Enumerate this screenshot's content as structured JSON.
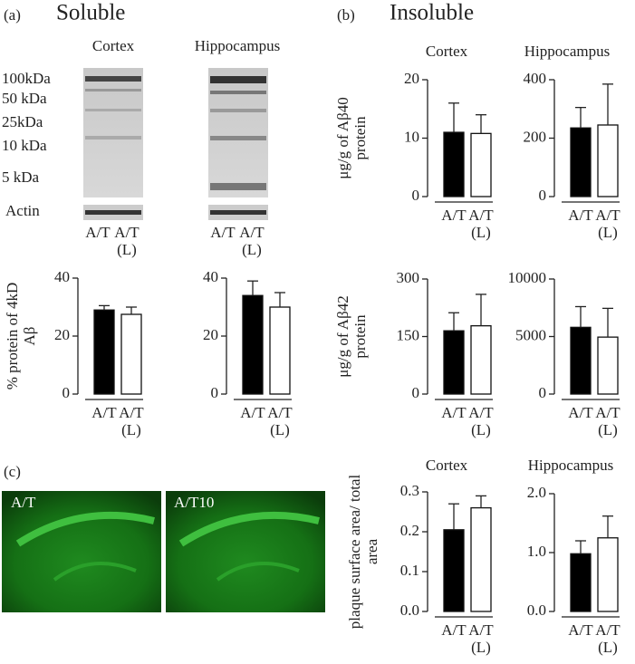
{
  "panels": [
    "(a)",
    "(b)",
    "(c)"
  ],
  "headings": [
    "Soluble",
    "Insoluble"
  ],
  "blot": {
    "columns": [
      "Cortex",
      "Hippocampus"
    ],
    "markers": [
      "100kDa",
      "50 kDa",
      "25kDa",
      "10 kDa",
      "5 kDa"
    ],
    "actin": "Actin",
    "lanes": [
      "A/T",
      "A/T (L)"
    ]
  },
  "images": [
    "A/T",
    "A/T10"
  ],
  "chart_data": [
    {
      "type": "bar",
      "y_label": "% protein of 4kD Aβ",
      "categories": [
        "A/T",
        "A/T (L)"
      ],
      "values": [
        29,
        27.5
      ],
      "errors": [
        1.5,
        2.5
      ],
      "colors": [
        "#000000",
        "#ffffff"
      ],
      "ylim": [
        0,
        40
      ],
      "yticks": [
        0,
        20,
        40
      ]
    },
    {
      "type": "bar",
      "categories": [
        "A/T",
        "A/T (L)"
      ],
      "values": [
        34,
        30
      ],
      "errors": [
        5,
        5
      ],
      "colors": [
        "#000000",
        "#ffffff"
      ],
      "ylim": [
        0,
        40
      ],
      "yticks": [
        0,
        20,
        40
      ]
    },
    {
      "type": "bar",
      "title": "Cortex",
      "y_label": "μg/g of Aβ40 protein",
      "categories": [
        "A/T",
        "A/T (L)"
      ],
      "values": [
        11,
        10.8
      ],
      "errors": [
        5,
        3.2
      ],
      "colors": [
        "#000000",
        "#ffffff"
      ],
      "ylim": [
        0,
        20
      ],
      "yticks": [
        0,
        10,
        20
      ]
    },
    {
      "type": "bar",
      "title": "Hippocampus",
      "categories": [
        "A/T",
        "A/T (L)"
      ],
      "values": [
        235,
        245
      ],
      "errors": [
        70,
        140
      ],
      "colors": [
        "#000000",
        "#ffffff"
      ],
      "ylim": [
        0,
        400
      ],
      "yticks": [
        0,
        200,
        400
      ]
    },
    {
      "type": "bar",
      "y_label": "μg/g of Aβ42 protein",
      "categories": [
        "A/T",
        "A/T (L)"
      ],
      "values": [
        165,
        178
      ],
      "errors": [
        47,
        82
      ],
      "colors": [
        "#000000",
        "#ffffff"
      ],
      "ylim": [
        0,
        300
      ],
      "yticks": [
        0,
        150,
        300
      ]
    },
    {
      "type": "bar",
      "categories": [
        "A/T",
        "A/T (L)"
      ],
      "values": [
        5800,
        4950
      ],
      "errors": [
        1800,
        2500
      ],
      "colors": [
        "#000000",
        "#ffffff"
      ],
      "ylim": [
        0,
        10000
      ],
      "yticks": [
        0,
        5000,
        10000
      ]
    },
    {
      "type": "bar",
      "title": "Cortex",
      "y_label": "plaque surface area/ total area",
      "categories": [
        "A/T",
        "A/T (L)"
      ],
      "values": [
        0.205,
        0.26
      ],
      "errors": [
        0.065,
        0.03
      ],
      "colors": [
        "#000000",
        "#ffffff"
      ],
      "ylim": [
        0,
        0.3
      ],
      "yticks": [
        {
          "value": 0,
          "label": "0.0"
        },
        0.1,
        0.2,
        0.3
      ]
    },
    {
      "type": "bar",
      "title": "Hippocampus",
      "categories": [
        "A/T",
        "A/T (L)"
      ],
      "values": [
        0.98,
        1.25
      ],
      "errors": [
        0.22,
        0.37
      ],
      "colors": [
        "#000000",
        "#ffffff"
      ],
      "ylim": [
        0,
        2
      ],
      "yticks": [
        {
          "value": 0,
          "label": "0.0"
        },
        {
          "value": 1,
          "label": "1.0"
        },
        {
          "value": 2,
          "label": "2.0"
        }
      ]
    }
  ]
}
